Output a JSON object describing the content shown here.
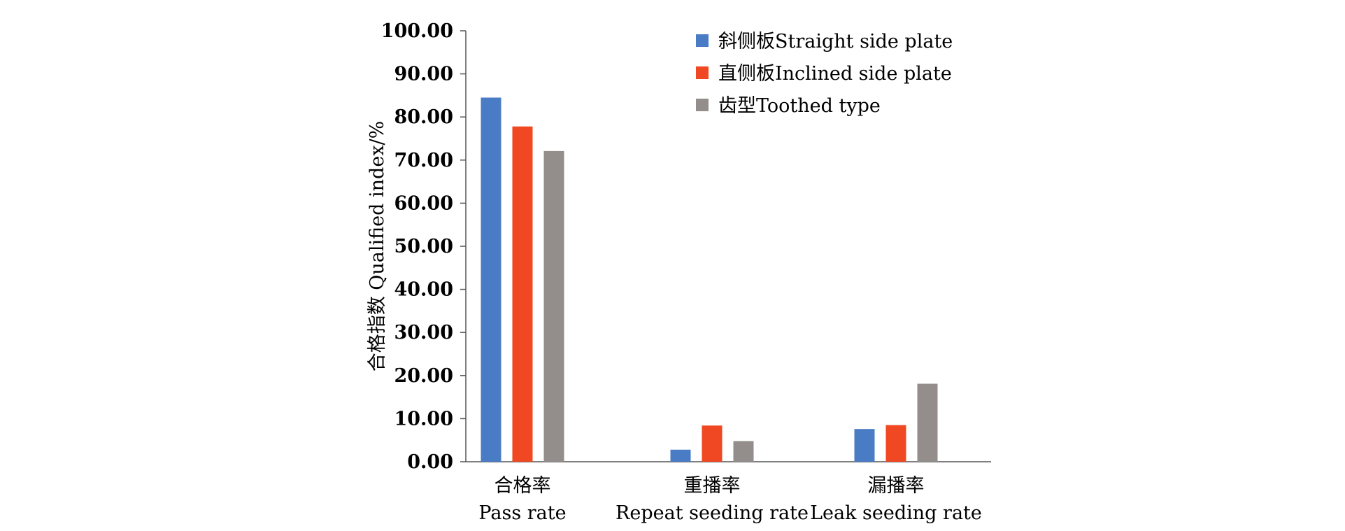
{
  "chart_data": {
    "type": "bar",
    "title": "",
    "ylabel": "合格指数 Qualified index/%",
    "xlabel": "",
    "ylim": [
      0,
      100
    ],
    "yticks": [
      "0.00",
      "10.00",
      "20.00",
      "30.00",
      "40.00",
      "50.00",
      "60.00",
      "70.00",
      "80.00",
      "90.00",
      "100.00"
    ],
    "categories": [
      {
        "zh": "合格率",
        "en": "Pass rate"
      },
      {
        "zh": "重播率",
        "en": "Repeat seeding rate"
      },
      {
        "zh": "漏播率",
        "en": "Leak seeding rate"
      }
    ],
    "series": [
      {
        "name": "斜侧板Straight side plate",
        "color": "#4a7cc5",
        "values": [
          84.5,
          2.8,
          7.6
        ]
      },
      {
        "name": "直侧板Inclined side plate",
        "color": "#ef4822",
        "values": [
          77.8,
          8.4,
          8.5
        ]
      },
      {
        "name": "齿型Toothed type",
        "color": "#938e8b",
        "values": [
          72.1,
          4.8,
          18.1
        ]
      }
    ],
    "grid": false,
    "legend_position": "top-right"
  }
}
